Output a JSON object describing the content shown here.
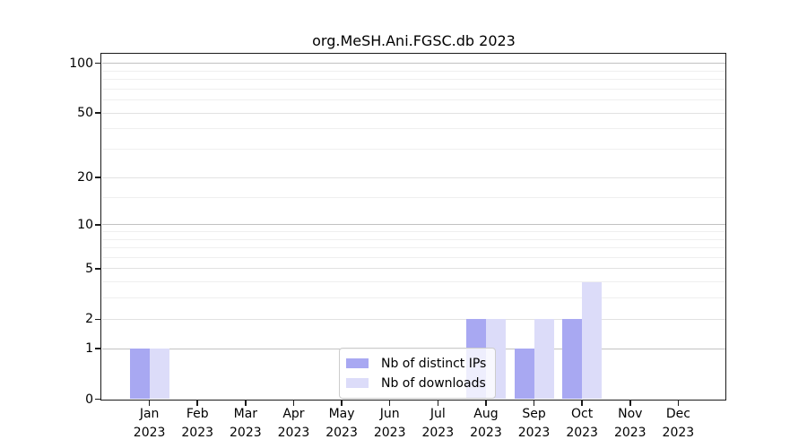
{
  "figure": {
    "background": "#ffffff"
  },
  "chart_data": {
    "type": "bar",
    "title": "org.MeSH.Ani.FGSC.db 2023",
    "x": {
      "months": [
        "Jan",
        "Feb",
        "Mar",
        "Apr",
        "May",
        "Jun",
        "Jul",
        "Aug",
        "Sep",
        "Oct",
        "Nov",
        "Dec"
      ],
      "year": "2023"
    },
    "series": [
      {
        "name": "Nb of distinct IPs",
        "color": "#a8a8f2",
        "values": [
          1,
          0,
          0,
          0,
          0,
          0,
          0,
          2,
          1,
          2,
          0,
          0
        ]
      },
      {
        "name": "Nb of downloads",
        "color": "#dcdcf9",
        "values": [
          1,
          0,
          0,
          0,
          0,
          0,
          0,
          2,
          2,
          4,
          0,
          0
        ]
      }
    ],
    "y_axis": {
      "scale": "log10(1+x)",
      "tick_values": [
        0,
        1,
        2,
        5,
        10,
        20,
        50,
        100
      ],
      "tick_labels": [
        "0",
        "1",
        "2",
        "5",
        "10",
        "20",
        "50",
        "100"
      ],
      "minor_gridline_values": [
        3,
        4,
        6,
        7,
        8,
        9,
        15,
        30,
        40,
        60,
        70,
        80,
        90
      ],
      "ylim": [
        0,
        114
      ]
    },
    "grid": {
      "major_color": "#c2c2c2",
      "mid_color": "#e2e2e2",
      "minor_color": "#efefef"
    },
    "legend": {
      "position": "bottom-center"
    }
  }
}
